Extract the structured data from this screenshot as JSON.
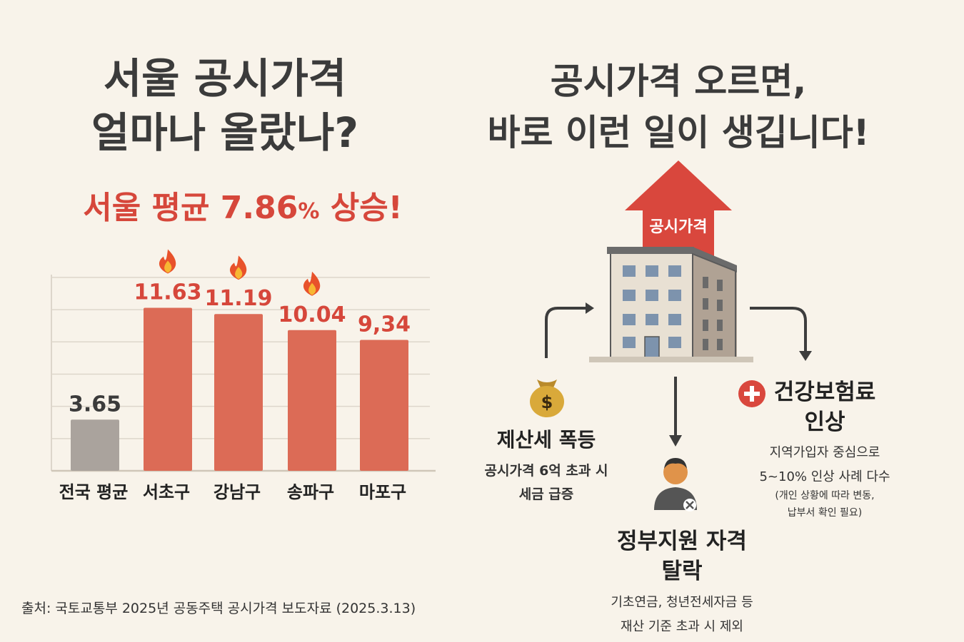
{
  "left": {
    "title_line1": "서울 공시가격",
    "title_line2": "얼마나 올랐나?",
    "headline_main": "서울 평균 7.86",
    "headline_pct": "%",
    "headline_tail": " 상승!"
  },
  "chart_data": {
    "type": "bar",
    "categories": [
      "전국 평균",
      "서초구",
      "강남구",
      "송파구",
      "마포구"
    ],
    "values": [
      3.65,
      11.63,
      11.19,
      10.04,
      9.34
    ],
    "value_labels": [
      "3.65",
      "11.63",
      "11.19",
      "10.04",
      "9,34"
    ],
    "highlight": [
      false,
      true,
      true,
      true,
      true
    ],
    "flames": [
      false,
      true,
      true,
      true,
      false
    ],
    "ylim": [
      0,
      14
    ],
    "grid": true,
    "colors": {
      "neutral": "#aaa39d",
      "highlight": "#dc6b56",
      "label_neutral": "#3b3b3b",
      "label_highlight": "#d6473b"
    }
  },
  "right": {
    "title_line1": "공시가격 오르면,",
    "title_line2": "바로 이런 일이 생깁니다!",
    "arrow_label": "공시가격",
    "property_tax": {
      "icon": "money-bag-icon",
      "title": "제산세 폭등",
      "desc1": "공시가격 6억 초과 시",
      "desc2": "세금 급증"
    },
    "health": {
      "icon": "plus-icon",
      "title1": "건강보험료",
      "title2": "인상",
      "desc1": "지역가입자 중심으로",
      "desc2": "5~10% 인상 사례 다수",
      "note1": "(개인 상황에 따라 변동,",
      "note2": "납부서 확인 필요)"
    },
    "support": {
      "icon": "person-x-icon",
      "title1": "정부지원 자격",
      "title2": "탈락",
      "desc1": "기초연금, 청년전세자금 등",
      "desc2": "재산 기준 초과 시 제외"
    }
  },
  "source": "출처: 국토교통부 2025년 공동주택 공시가격 보도자료 (2025.3.13)",
  "colors": {
    "accent": "#d6473b",
    "background": "#f8f3ea",
    "building": "#e4dccf",
    "window": "#8096ad"
  }
}
